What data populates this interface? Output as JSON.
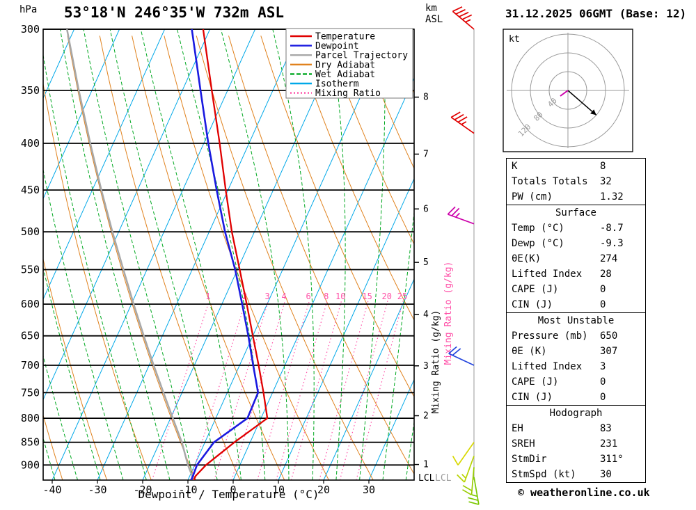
{
  "header": {
    "left_title": "53°18'N 246°35'W 732m ASL",
    "right_title": "31.12.2025 06GMT (Base: 12)",
    "pressure_unit": "hPa",
    "altitude_unit": "km\nASL"
  },
  "axes": {
    "xlabel": "Dewpoint / Temperature (°C)",
    "pressure_ticks": [
      300,
      350,
      400,
      450,
      500,
      550,
      600,
      650,
      700,
      750,
      800,
      850,
      900
    ],
    "temp_ticks": [
      -40,
      -30,
      -20,
      -10,
      0,
      10,
      20,
      30
    ],
    "km_ticks": [
      {
        "km": 8,
        "p": 356
      },
      {
        "km": 7,
        "p": 411
      },
      {
        "km": 6,
        "p": 472
      },
      {
        "km": 5,
        "p": 540
      },
      {
        "km": 4,
        "p": 616
      },
      {
        "km": 3,
        "p": 701
      },
      {
        "km": 2,
        "p": 795
      },
      {
        "km": 1,
        "p": 899
      }
    ],
    "mixing_ratio_axis_label": "Mixing Ratio (g/kg)",
    "lcl_label": "LCL"
  },
  "legend": {
    "items": [
      {
        "label": "Temperature",
        "color": "#e00000",
        "style": "solid"
      },
      {
        "label": "Dewpoint",
        "color": "#1a1ae0",
        "style": "solid"
      },
      {
        "label": "Parcel Trajectory",
        "color": "#a8a8a8",
        "style": "solid"
      },
      {
        "label": "Dry Adiabat",
        "color": "#e0821e",
        "style": "solid"
      },
      {
        "label": "Wet Adiabat",
        "color": "#00a820",
        "style": "dashed"
      },
      {
        "label": "Isotherm",
        "color": "#00a8e8",
        "style": "solid"
      },
      {
        "label": "Mixing Ratio",
        "color": "#ff4fa7",
        "style": "dotted"
      }
    ]
  },
  "colors": {
    "temperature": "#e00000",
    "dewpoint": "#1a1ae0",
    "parcel": "#a8a8a8",
    "dry_adiabat": "#e0821e",
    "wet_adiabat": "#00a820",
    "isotherm": "#00a8e8",
    "mixing_ratio": "#ff4fa7",
    "pressure_line": "#000000",
    "wind_column": "#aaaaaa"
  },
  "chart_data": {
    "type": "skewt_log_p",
    "pressure_range_hpa": [
      300,
      935
    ],
    "temp_axis_range_c": [
      -40,
      40
    ],
    "isotherms_c": {
      "start": -120,
      "end": 40,
      "step": 10
    },
    "dry_adiabats_k": {
      "start": 210,
      "end": 380,
      "step": 10
    },
    "wet_adiabats_c": {
      "start": -45,
      "end": 40,
      "step": 5
    },
    "mixing_ratio_g_kg": [
      1,
      2,
      3,
      4,
      6,
      8,
      10,
      15,
      20,
      25
    ],
    "temperature_profile": [
      {
        "p": 935,
        "t": -8.7
      },
      {
        "p": 925,
        "t": -8.7
      },
      {
        "p": 900,
        "t": -7.5
      },
      {
        "p": 850,
        "t": -3.5
      },
      {
        "p": 800,
        "t": 1.4
      },
      {
        "p": 750,
        "t": -2.0
      },
      {
        "p": 700,
        "t": -5.8
      },
      {
        "p": 650,
        "t": -10.0
      },
      {
        "p": 600,
        "t": -14.5
      },
      {
        "p": 550,
        "t": -19.5
      },
      {
        "p": 500,
        "t": -25.0
      },
      {
        "p": 450,
        "t": -30.5
      },
      {
        "p": 400,
        "t": -36.5
      },
      {
        "p": 350,
        "t": -43.5
      },
      {
        "p": 300,
        "t": -51.5
      }
    ],
    "dewpoint_profile": [
      {
        "p": 935,
        "t": -9.3
      },
      {
        "p": 925,
        "t": -9.3
      },
      {
        "p": 900,
        "t": -9.5
      },
      {
        "p": 850,
        "t": -8.0
      },
      {
        "p": 800,
        "t": -3.0
      },
      {
        "p": 750,
        "t": -3.2
      },
      {
        "p": 700,
        "t": -7.0
      },
      {
        "p": 650,
        "t": -11.0
      },
      {
        "p": 600,
        "t": -15.5
      },
      {
        "p": 550,
        "t": -20.5
      },
      {
        "p": 500,
        "t": -26.5
      },
      {
        "p": 450,
        "t": -32.5
      },
      {
        "p": 400,
        "t": -39.0
      },
      {
        "p": 350,
        "t": -46.0
      },
      {
        "p": 300,
        "t": -54.0
      }
    ],
    "parcel_profile": [
      {
        "p": 935,
        "t": -8.7
      },
      {
        "p": 900,
        "t": -11.5
      },
      {
        "p": 850,
        "t": -15.1
      },
      {
        "p": 800,
        "t": -19.5
      },
      {
        "p": 750,
        "t": -24.1
      },
      {
        "p": 700,
        "t": -29.0
      },
      {
        "p": 650,
        "t": -34.1
      },
      {
        "p": 600,
        "t": -39.5
      },
      {
        "p": 550,
        "t": -45.2
      },
      {
        "p": 500,
        "t": -51.4
      },
      {
        "p": 450,
        "t": -58.0
      },
      {
        "p": 400,
        "t": -65.1
      },
      {
        "p": 350,
        "t": -72.9
      },
      {
        "p": 300,
        "t": -81.6
      }
    ],
    "winds": [
      {
        "p": 300,
        "dir": 310,
        "spd": 45,
        "color": "#e00000"
      },
      {
        "p": 390,
        "dir": 305,
        "spd": 35,
        "color": "#e00000"
      },
      {
        "p": 490,
        "dir": 290,
        "spd": 25,
        "color": "#cc00aa"
      },
      {
        "p": 700,
        "dir": 295,
        "spd": 20,
        "color": "#2244dd"
      },
      {
        "p": 850,
        "dir": 215,
        "spd": 10,
        "color": "#d8d800"
      },
      {
        "p": 880,
        "dir": 200,
        "spd": 15,
        "color": "#b8d400"
      },
      {
        "p": 905,
        "dir": 185,
        "spd": 20,
        "color": "#98cc00"
      },
      {
        "p": 928,
        "dir": 170,
        "spd": 25,
        "color": "#7ac800"
      }
    ]
  },
  "hodograph": {
    "unit": "kt",
    "rings_kt": [
      40,
      80,
      120
    ],
    "storm_dir_deg": 311,
    "storm_spd_kt": 30
  },
  "table": {
    "sections": [
      {
        "title": null,
        "rows": [
          [
            "K",
            "8"
          ],
          [
            "Totals Totals",
            "32"
          ],
          [
            "PW (cm)",
            "1.32"
          ]
        ]
      },
      {
        "title": "Surface",
        "rows": [
          [
            "Temp (°C)",
            "-8.7"
          ],
          [
            "Dewp (°C)",
            "-9.3"
          ],
          [
            "θE(K)",
            "274"
          ],
          [
            "Lifted Index",
            "28"
          ],
          [
            "CAPE (J)",
            "0"
          ],
          [
            "CIN (J)",
            "0"
          ]
        ]
      },
      {
        "title": "Most Unstable",
        "rows": [
          [
            "Pressure (mb)",
            "650"
          ],
          [
            "θE (K)",
            "307"
          ],
          [
            "Lifted Index",
            "3"
          ],
          [
            "CAPE (J)",
            "0"
          ],
          [
            "CIN (J)",
            "0"
          ]
        ]
      },
      {
        "title": "Hodograph",
        "rows": [
          [
            "EH",
            "83"
          ],
          [
            "SREH",
            "231"
          ],
          [
            "StmDir",
            "311°"
          ],
          [
            "StmSpd (kt)",
            "30"
          ]
        ]
      }
    ]
  },
  "footer": {
    "copyright": "© weatheronline.co.uk"
  }
}
